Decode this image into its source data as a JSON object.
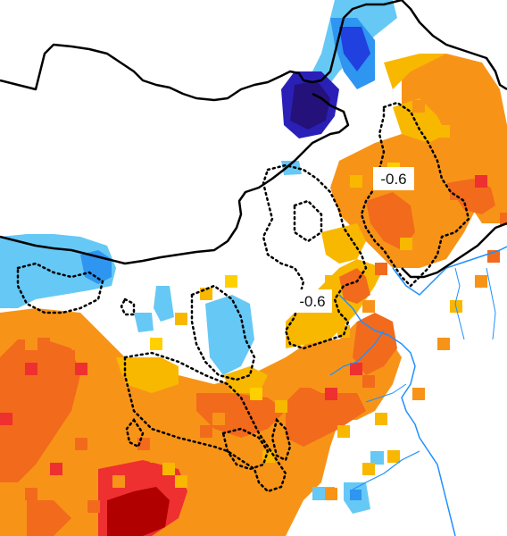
{
  "map": {
    "contour_labels": [
      {
        "id": "label-northeast",
        "text": "-0.6"
      },
      {
        "id": "label-north-china-plain",
        "text": "-0.6"
      }
    ],
    "colors": {
      "dark_red": "#b00000",
      "red": "#ee3030",
      "orange_red": "#f26a1c",
      "orange": "#f79418",
      "gold": "#f8b800",
      "yellow": "#ffd000",
      "light_blue": "#66c8f5",
      "medium_blue": "#2e95f0",
      "blue": "#2040e0",
      "navy": "#2a20b8",
      "dark_purple": "#24127a",
      "border": "#000000",
      "coast_river": "#1e90ff",
      "contour": "#000000"
    },
    "icons": [
      "country-border",
      "coastline",
      "river",
      "dotted-contour-line"
    ]
  }
}
